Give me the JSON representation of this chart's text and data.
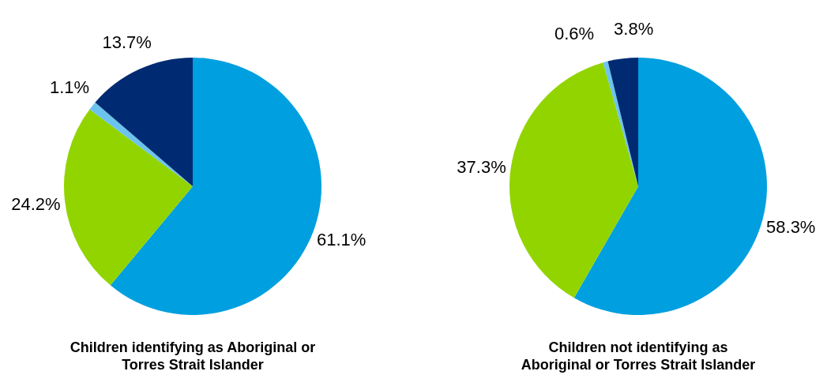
{
  "chart_data": [
    {
      "type": "pie",
      "title": "Children identifying as Aboriginal or\nTorres Strait Islander",
      "categories": [
        null,
        null,
        null,
        null
      ],
      "values": [
        61.1,
        24.2,
        1.1,
        13.7
      ],
      "colors": [
        "#009fdf",
        "#92d400",
        "#6cc4ee",
        "#002b73"
      ],
      "value_labels": [
        "61.1%",
        "24.2%",
        "1.1%",
        "13.7%"
      ]
    },
    {
      "type": "pie",
      "title": "Children not identifying as\nAboriginal or Torres Strait Islander",
      "categories": [
        null,
        null,
        null,
        null
      ],
      "values": [
        58.3,
        37.3,
        0.6,
        3.8
      ],
      "colors": [
        "#009fdf",
        "#92d400",
        "#6cc4ee",
        "#002b73"
      ],
      "value_labels": [
        "58.3%",
        "37.3%",
        "0.6%",
        "3.8%"
      ]
    }
  ]
}
